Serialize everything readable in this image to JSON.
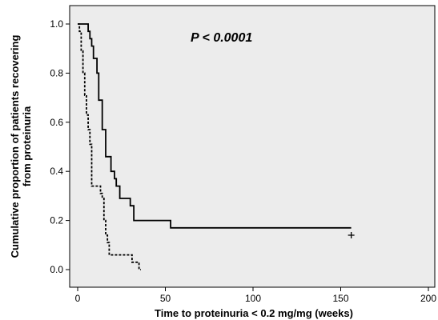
{
  "chart_data": {
    "type": "line",
    "title": "",
    "xlabel": "Time to proteinuria < 0.2 mg/mg (weeks)",
    "ylabel_lines": [
      "Cumulative proportion of patients recovering",
      "from proteinuria"
    ],
    "annotation": "P < 0.0001",
    "xlim": [
      0,
      200
    ],
    "ylim": [
      0.0,
      1.0
    ],
    "x_ticks": [
      0,
      50,
      100,
      150,
      200
    ],
    "x_tick_labels": [
      "0",
      "50",
      "100",
      "150",
      "200"
    ],
    "y_ticks": [
      0.0,
      0.2,
      0.4,
      0.6,
      0.8,
      1.0
    ],
    "y_tick_labels": [
      "0.0",
      "0.2",
      "0.4",
      "0.6",
      "0.8",
      "1.0"
    ],
    "grid": false,
    "legend": "none",
    "plot_background": "#ececec",
    "series": [
      {
        "style": "solid",
        "color": "#000000",
        "steps": [
          [
            0,
            1.0
          ],
          [
            6,
            0.97
          ],
          [
            7,
            0.94
          ],
          [
            8,
            0.91
          ],
          [
            9,
            0.86
          ],
          [
            11,
            0.8
          ],
          [
            12,
            0.69
          ],
          [
            14,
            0.57
          ],
          [
            16,
            0.46
          ],
          [
            19,
            0.4
          ],
          [
            21,
            0.37
          ],
          [
            22,
            0.34
          ],
          [
            24,
            0.29
          ],
          [
            30,
            0.26
          ],
          [
            32,
            0.2
          ],
          [
            53,
            0.17
          ],
          [
            156,
            0.17
          ]
        ],
        "censored": [
          [
            156,
            0.14
          ]
        ]
      },
      {
        "style": "dashed",
        "color": "#000000",
        "steps": [
          [
            0,
            1.0
          ],
          [
            1,
            0.97
          ],
          [
            2,
            0.89
          ],
          [
            3,
            0.8
          ],
          [
            4,
            0.71
          ],
          [
            5,
            0.63
          ],
          [
            6,
            0.57
          ],
          [
            7,
            0.51
          ],
          [
            8,
            0.34
          ],
          [
            13,
            0.31
          ],
          [
            14,
            0.29
          ],
          [
            15,
            0.2
          ],
          [
            16,
            0.14
          ],
          [
            17,
            0.11
          ],
          [
            18,
            0.06
          ],
          [
            31,
            0.03
          ],
          [
            35,
            0.0
          ],
          [
            36,
            0.0
          ]
        ],
        "censored": []
      }
    ]
  }
}
